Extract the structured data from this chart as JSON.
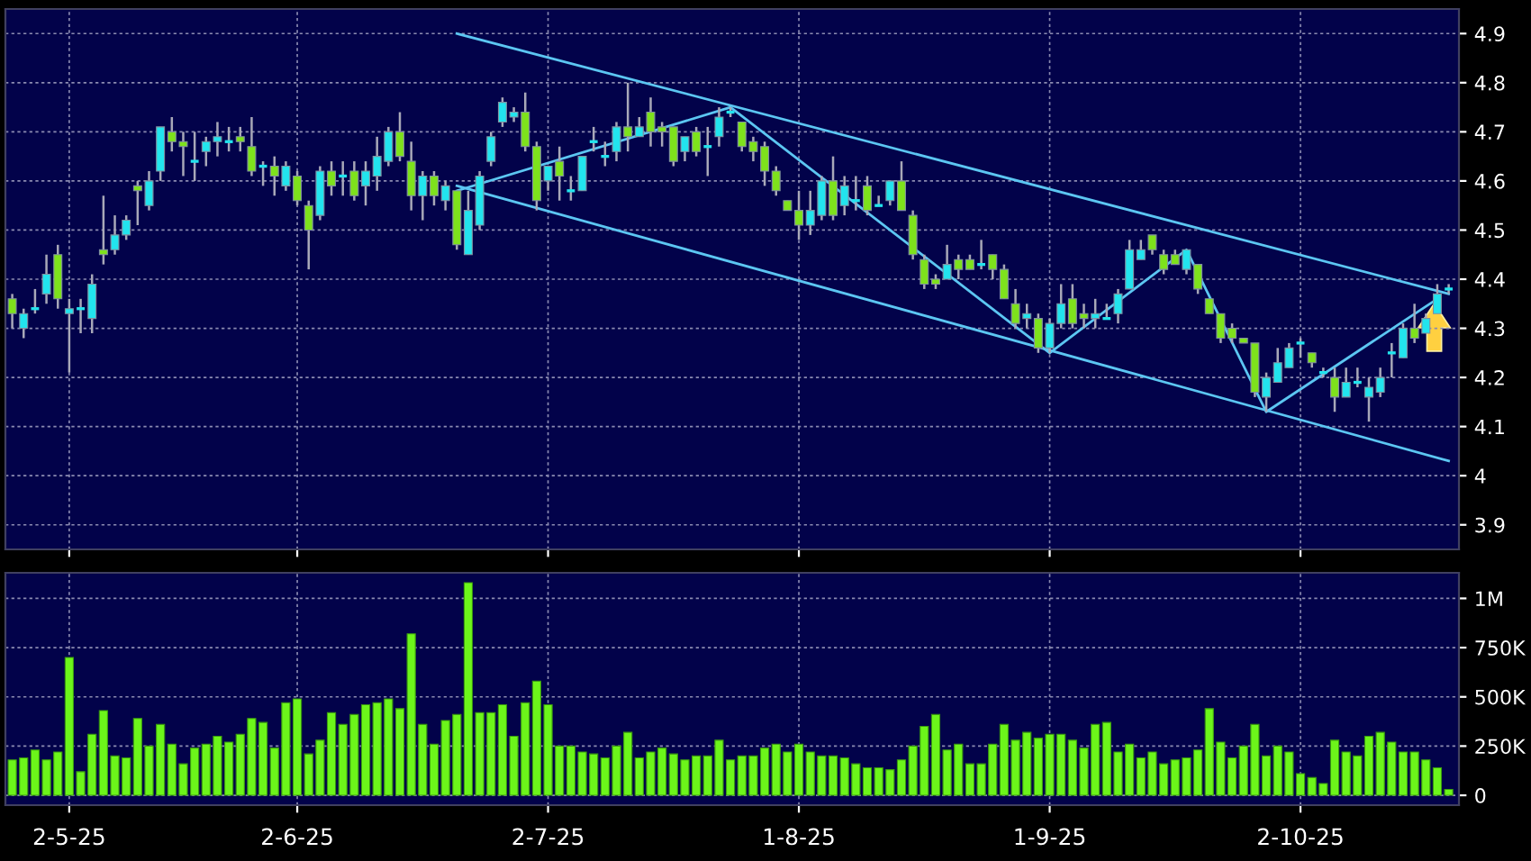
{
  "chart_data": [
    {
      "type": "candlestick",
      "categories": [
        null,
        null,
        null,
        null,
        null,
        null,
        null,
        null,
        null,
        null,
        null,
        null,
        null,
        null,
        null,
        null,
        null,
        null,
        null,
        null,
        null,
        null,
        null,
        null,
        null,
        null,
        null,
        null,
        null,
        null,
        null,
        null,
        null,
        null,
        null,
        null,
        null,
        null,
        null,
        null,
        null,
        null,
        null,
        null,
        null,
        null,
        null,
        null,
        null,
        null,
        null,
        null,
        null,
        null,
        null,
        null,
        null,
        null,
        null,
        null,
        null,
        null,
        null,
        null,
        null,
        null,
        null,
        null,
        null,
        null,
        null,
        null,
        null,
        null,
        null,
        null,
        null,
        null,
        null,
        null,
        null,
        null,
        null,
        null,
        null,
        null,
        null,
        null,
        null,
        null,
        null,
        null,
        null,
        null,
        null,
        null,
        null,
        null,
        null,
        null,
        null,
        null,
        null,
        null,
        null,
        null,
        null,
        null,
        null,
        null,
        null,
        null,
        null,
        null,
        null,
        null,
        null,
        null,
        null,
        null,
        null,
        null,
        null,
        null,
        null,
        null,
        null
      ],
      "tick_labels": "y",
      "ylim": [
        3.85,
        4.95
      ],
      "yticks": [
        3.9,
        4,
        4.1,
        4.2,
        4.3,
        4.4,
        4.5,
        4.6,
        4.7,
        4.8,
        4.9
      ],
      "grid": true,
      "series": [
        {
          "type": "line",
          "color": "#5cc6f2",
          "values": [
            null,
            null,
            null,
            null,
            null,
            null,
            null,
            null,
            null,
            null,
            null,
            null,
            null,
            null,
            null,
            null,
            null,
            null,
            null,
            null,
            null,
            null,
            null,
            null,
            null,
            null,
            null,
            null,
            null,
            null,
            null,
            null,
            null,
            null,
            null,
            null,
            null,
            null,
            null,
            4.9,
            null,
            null,
            null,
            null,
            null,
            null,
            null,
            null,
            null,
            null,
            null,
            null,
            null,
            null,
            null,
            null,
            null,
            null,
            null,
            null,
            null,
            null,
            null,
            null,
            null,
            null,
            null,
            null,
            null,
            null,
            null,
            null,
            null,
            null,
            null,
            null,
            null,
            null,
            null,
            null,
            null,
            null,
            null,
            null,
            null,
            null,
            null,
            null,
            null,
            null,
            null,
            null,
            null,
            null,
            null,
            null,
            null,
            null,
            null,
            null,
            null,
            null,
            null,
            null,
            null,
            null,
            null,
            null,
            null,
            null,
            null,
            null,
            null,
            null,
            null,
            null,
            null,
            null,
            null,
            null,
            null,
            null,
            null,
            null,
            null,
            null,
            4.37
          ]
        },
        {
          "type": "line",
          "color": "#5cc6f2",
          "values": [
            null,
            null,
            null,
            null,
            null,
            null,
            null,
            null,
            null,
            null,
            null,
            null,
            null,
            null,
            null,
            null,
            null,
            null,
            null,
            null,
            null,
            null,
            null,
            null,
            null,
            null,
            null,
            null,
            null,
            null,
            null,
            null,
            null,
            null,
            null,
            null,
            null,
            null,
            null,
            4.59,
            null,
            null,
            null,
            null,
            null,
            null,
            null,
            null,
            null,
            null,
            null,
            null,
            null,
            null,
            null,
            null,
            null,
            null,
            null,
            null,
            null,
            null,
            null,
            null,
            null,
            null,
            null,
            null,
            null,
            null,
            null,
            null,
            null,
            null,
            null,
            null,
            null,
            null,
            null,
            null,
            null,
            null,
            null,
            null,
            null,
            null,
            null,
            null,
            null,
            null,
            null,
            null,
            null,
            null,
            null,
            null,
            null,
            null,
            null,
            null,
            null,
            null,
            null,
            null,
            null,
            null,
            null,
            null,
            null,
            null,
            null,
            null,
            null,
            null,
            null,
            null,
            null,
            null,
            null,
            null,
            null,
            null,
            null,
            null,
            null,
            null,
            4.03
          ]
        },
        {
          "type": "line",
          "color": "#5cc6f2",
          "values": [
            null,
            null,
            null,
            null,
            null,
            null,
            null,
            null,
            null,
            null,
            null,
            null,
            null,
            null,
            null,
            null,
            null,
            null,
            null,
            null,
            null,
            null,
            null,
            null,
            null,
            null,
            null,
            null,
            null,
            null,
            null,
            null,
            null,
            null,
            null,
            null,
            null,
            null,
            null,
            4.58,
            null,
            null,
            null,
            null,
            null,
            null,
            null,
            null,
            null,
            null,
            null,
            null,
            null,
            null,
            null,
            null,
            null,
            null,
            null,
            null,
            null,
            null,
            null,
            4.75,
            null,
            null,
            null,
            null,
            null,
            null,
            null,
            null,
            null,
            null,
            null,
            null,
            null,
            null,
            null,
            null,
            null,
            null,
            null,
            null,
            null,
            null,
            null,
            null,
            null,
            null,
            null,
            4.25,
            null,
            null,
            null,
            null,
            null,
            null,
            null,
            null,
            null,
            null,
            null,
            4.46,
            null,
            null,
            null,
            null,
            null,
            null,
            4.13,
            null,
            null,
            null,
            null,
            null,
            null,
            null,
            null,
            null,
            null,
            null,
            null,
            null,
            null,
            4.36,
            null
          ]
        },
        {
          "type": "candlestick",
          "colors": [
            "#7ee21c",
            "#22e4ee",
            "#22e4ee",
            "#22e4ee",
            "#7ee21c",
            "#22e4ee",
            "#22e4ee",
            "#22e4ee",
            "#7ee21c",
            "#22e4ee",
            "#22e4ee",
            "#7ee21c",
            "#22e4ee",
            "#22e4ee",
            "#7ee21c",
            "#7ee21c",
            "#22e4ee",
            "#22e4ee",
            "#22e4ee",
            "#22e4ee",
            "#7ee21c",
            "#7ee21c",
            "#22e4ee",
            "#7ee21c",
            "#22e4ee",
            "#7ee21c",
            "#7ee21c",
            "#22e4ee",
            "#7ee21c",
            "#22e4ee",
            "#7ee21c",
            "#22e4ee",
            "#22e4ee",
            "#22e4ee",
            "#7ee21c",
            "#7ee21c",
            "#22e4ee",
            "#7ee21c",
            "#22e4ee",
            "#7ee21c",
            "#22e4ee",
            "#22e4ee",
            "#22e4ee",
            "#22e4ee",
            "#22e4ee",
            "#7ee21c",
            "#7ee21c",
            "#22e4ee",
            "#7ee21c",
            "#22e4ee",
            "#22e4ee",
            "#22e4ee",
            "#22e4ee",
            "#22e4ee",
            "#7ee21c",
            "#22e4ee",
            "#7ee21c",
            "#7ee21c",
            "#7ee21c",
            "#22e4ee",
            "#7ee21c",
            "#22e4ee",
            "#22e4ee",
            "#22e4ee",
            "#7ee21c",
            "#7ee21c",
            "#7ee21c",
            "#7ee21c",
            "#7ee21c",
            "#7ee21c",
            "#22e4ee",
            "#22e4ee",
            "#7ee21c",
            "#22e4ee",
            "#22e4ee",
            "#7ee21c",
            "#22e4ee",
            "#22e4ee",
            "#7ee21c",
            "#7ee21c",
            "#7ee21c",
            "#7ee21c",
            "#22e4ee",
            "#7ee21c",
            "#7ee21c",
            "#22e4ee",
            "#7ee21c",
            "#7ee21c",
            "#7ee21c",
            "#22e4ee",
            "#7ee21c",
            "#22e4ee",
            "#22e4ee",
            "#7ee21c",
            "#7ee21c",
            "#22e4ee",
            "#22e4ee",
            "#22e4ee",
            "#22e4ee",
            "#22e4ee",
            "#7ee21c",
            "#7ee21c",
            "#7ee21c",
            "#22e4ee",
            "#7ee21c",
            "#7ee21c",
            "#7ee21c",
            "#7ee21c",
            "#7ee21c",
            "#7ee21c",
            "#22e4ee",
            "#22e4ee",
            "#22e4ee",
            "#22e4ee",
            "#7ee21c",
            "#22e4ee",
            "#7ee21c",
            "#22e4ee",
            "#22e4ee",
            "#22e4ee",
            "#22e4ee",
            "#22e4ee",
            "#22e4ee",
            "#7ee21c",
            "#22e4ee",
            "#22e4ee",
            "#22e4ee"
          ],
          "ohlc": [
            [
              4.36,
              4.37,
              4.3,
              4.33
            ],
            [
              4.3,
              4.34,
              4.28,
              4.33
            ],
            [
              4.34,
              4.38,
              4.33,
              4.34
            ],
            [
              4.37,
              4.45,
              4.35,
              4.41
            ],
            [
              4.45,
              4.47,
              4.34,
              4.36
            ],
            [
              4.33,
              4.36,
              4.21,
              4.34
            ],
            [
              4.34,
              4.36,
              4.29,
              4.34
            ],
            [
              4.32,
              4.41,
              4.29,
              4.39
            ],
            [
              4.46,
              4.57,
              4.43,
              4.45
            ],
            [
              4.46,
              4.53,
              4.45,
              4.49
            ],
            [
              4.49,
              4.53,
              4.48,
              4.52
            ],
            [
              4.59,
              4.6,
              4.51,
              4.58
            ],
            [
              4.55,
              4.62,
              4.54,
              4.6
            ],
            [
              4.62,
              4.71,
              4.6,
              4.71
            ],
            [
              4.7,
              4.73,
              4.66,
              4.68
            ],
            [
              4.68,
              4.7,
              4.61,
              4.67
            ],
            [
              4.64,
              4.7,
              4.6,
              4.64
            ],
            [
              4.66,
              4.69,
              4.63,
              4.68
            ],
            [
              4.68,
              4.72,
              4.65,
              4.69
            ],
            [
              4.68,
              4.71,
              4.66,
              4.68
            ],
            [
              4.69,
              4.71,
              4.66,
              4.68
            ],
            [
              4.67,
              4.73,
              4.61,
              4.62
            ],
            [
              4.63,
              4.64,
              4.59,
              4.63
            ],
            [
              4.63,
              4.65,
              4.57,
              4.61
            ],
            [
              4.59,
              4.64,
              4.58,
              4.63
            ],
            [
              4.61,
              4.62,
              4.55,
              4.56
            ],
            [
              4.55,
              4.56,
              4.42,
              4.5
            ],
            [
              4.53,
              4.63,
              4.52,
              4.62
            ],
            [
              4.62,
              4.64,
              4.57,
              4.59
            ],
            [
              4.61,
              4.64,
              4.57,
              4.61
            ],
            [
              4.62,
              4.64,
              4.56,
              4.57
            ],
            [
              4.59,
              4.64,
              4.55,
              4.62
            ],
            [
              4.61,
              4.69,
              4.58,
              4.65
            ],
            [
              4.64,
              4.71,
              4.63,
              4.7
            ],
            [
              4.7,
              4.74,
              4.64,
              4.65
            ],
            [
              4.64,
              4.68,
              4.54,
              4.57
            ],
            [
              4.57,
              4.62,
              4.52,
              4.61
            ],
            [
              4.61,
              4.62,
              4.55,
              4.57
            ],
            [
              4.56,
              4.6,
              4.54,
              4.59
            ],
            [
              4.58,
              4.58,
              4.46,
              4.47
            ],
            [
              4.45,
              4.58,
              4.45,
              4.54
            ],
            [
              4.51,
              4.62,
              4.5,
              4.61
            ],
            [
              4.64,
              4.7,
              4.63,
              4.69
            ],
            [
              4.72,
              4.77,
              4.71,
              4.76
            ],
            [
              4.73,
              4.75,
              4.72,
              4.74
            ],
            [
              4.74,
              4.78,
              4.66,
              4.67
            ],
            [
              4.67,
              4.68,
              4.54,
              4.56
            ],
            [
              4.6,
              4.63,
              4.58,
              4.63
            ],
            [
              4.64,
              4.67,
              4.56,
              4.61
            ],
            [
              4.58,
              4.61,
              4.56,
              4.58
            ],
            [
              4.58,
              4.65,
              4.58,
              4.65
            ],
            [
              4.68,
              4.71,
              4.66,
              4.68
            ],
            [
              4.65,
              4.68,
              4.63,
              4.65
            ],
            [
              4.66,
              4.72,
              4.64,
              4.71
            ],
            [
              4.71,
              4.8,
              4.66,
              4.69
            ],
            [
              4.69,
              4.73,
              4.69,
              4.71
            ],
            [
              4.74,
              4.77,
              4.67,
              4.7
            ],
            [
              4.71,
              4.72,
              4.67,
              4.7
            ],
            [
              4.71,
              4.71,
              4.63,
              4.64
            ],
            [
              4.66,
              4.69,
              4.64,
              4.69
            ],
            [
              4.7,
              4.71,
              4.65,
              4.66
            ],
            [
              4.67,
              4.71,
              4.61,
              4.67
            ],
            [
              4.69,
              4.75,
              4.67,
              4.73
            ],
            [
              4.74,
              4.75,
              4.73,
              4.74
            ],
            [
              4.72,
              4.72,
              4.66,
              4.67
            ],
            [
              4.68,
              4.69,
              4.64,
              4.66
            ],
            [
              4.67,
              4.68,
              4.59,
              4.62
            ],
            [
              4.62,
              4.63,
              4.57,
              4.58
            ],
            [
              4.56,
              4.56,
              4.54,
              4.54
            ],
            [
              4.54,
              4.58,
              4.48,
              4.51
            ],
            [
              4.51,
              4.58,
              4.49,
              4.54
            ],
            [
              4.53,
              4.61,
              4.52,
              4.6
            ],
            [
              4.6,
              4.65,
              4.52,
              4.53
            ],
            [
              4.55,
              4.61,
              4.53,
              4.59
            ],
            [
              4.56,
              4.61,
              4.54,
              4.56
            ],
            [
              4.59,
              4.61,
              4.53,
              4.54
            ],
            [
              4.55,
              4.57,
              4.55,
              4.55
            ],
            [
              4.56,
              4.6,
              4.55,
              4.6
            ],
            [
              4.6,
              4.64,
              4.54,
              4.54
            ],
            [
              4.53,
              4.54,
              4.44,
              4.45
            ],
            [
              4.44,
              4.45,
              4.38,
              4.39
            ],
            [
              4.4,
              4.41,
              4.38,
              4.39
            ],
            [
              4.4,
              4.47,
              4.4,
              4.43
            ],
            [
              4.44,
              4.45,
              4.4,
              4.42
            ],
            [
              4.44,
              4.45,
              4.42,
              4.42
            ],
            [
              4.43,
              4.48,
              4.42,
              4.43
            ],
            [
              4.45,
              4.45,
              4.4,
              4.42
            ],
            [
              4.42,
              4.43,
              4.36,
              4.36
            ],
            [
              4.35,
              4.38,
              4.3,
              4.31
            ],
            [
              4.32,
              4.35,
              4.3,
              4.33
            ],
            [
              4.32,
              4.33,
              4.25,
              4.26
            ],
            [
              4.26,
              4.32,
              4.25,
              4.31
            ],
            [
              4.31,
              4.39,
              4.3,
              4.35
            ],
            [
              4.36,
              4.39,
              4.3,
              4.31
            ],
            [
              4.33,
              4.35,
              4.3,
              4.32
            ],
            [
              4.32,
              4.36,
              4.3,
              4.33
            ],
            [
              4.32,
              4.35,
              4.32,
              4.32
            ],
            [
              4.33,
              4.38,
              4.31,
              4.37
            ],
            [
              4.38,
              4.48,
              4.38,
              4.46
            ],
            [
              4.44,
              4.48,
              4.44,
              4.46
            ],
            [
              4.49,
              4.49,
              4.45,
              4.46
            ],
            [
              4.45,
              4.46,
              4.41,
              4.42
            ],
            [
              4.45,
              4.46,
              4.43,
              4.43
            ],
            [
              4.42,
              4.46,
              4.41,
              4.46
            ],
            [
              4.43,
              4.43,
              4.37,
              4.38
            ],
            [
              4.36,
              4.36,
              4.33,
              4.33
            ],
            [
              4.33,
              4.33,
              4.27,
              4.28
            ],
            [
              4.3,
              4.31,
              4.27,
              4.28
            ],
            [
              4.28,
              4.28,
              4.27,
              4.27
            ],
            [
              4.27,
              4.27,
              4.16,
              4.17
            ],
            [
              4.16,
              4.21,
              4.13,
              4.2
            ],
            [
              4.19,
              4.26,
              4.19,
              4.23
            ],
            [
              4.22,
              4.27,
              4.22,
              4.26
            ],
            [
              4.27,
              4.28,
              4.24,
              4.27
            ],
            [
              4.25,
              4.25,
              4.22,
              4.23
            ],
            [
              4.21,
              4.22,
              4.2,
              4.21
            ],
            [
              4.2,
              4.22,
              4.13,
              4.16
            ],
            [
              4.16,
              4.22,
              4.16,
              4.19
            ],
            [
              4.19,
              4.22,
              4.18,
              4.19
            ],
            [
              4.16,
              4.2,
              4.11,
              4.18
            ],
            [
              4.17,
              4.22,
              4.16,
              4.2
            ],
            [
              4.25,
              4.27,
              4.2,
              4.25
            ],
            [
              4.24,
              4.31,
              4.24,
              4.3
            ],
            [
              4.3,
              4.35,
              4.27,
              4.28
            ],
            [
              4.29,
              4.33,
              4.29,
              4.32
            ],
            [
              4.33,
              4.39,
              4.33,
              4.37
            ],
            [
              4.38,
              4.39,
              4.37,
              4.38
            ]
          ]
        }
      ]
    },
    {
      "type": "bar",
      "categories": [
        null,
        null,
        null,
        null,
        null,
        "2-5-25",
        null,
        null,
        null,
        null,
        null,
        null,
        null,
        null,
        null,
        null,
        null,
        null,
        null,
        null,
        null,
        null,
        null,
        null,
        null,
        "2-6-25",
        null,
        null,
        null,
        null,
        null,
        null,
        null,
        null,
        null,
        null,
        null,
        null,
        null,
        null,
        null,
        null,
        null,
        null,
        null,
        null,
        null,
        "2-7-25",
        null,
        null,
        null,
        null,
        null,
        null,
        null,
        null,
        null,
        null,
        null,
        null,
        null,
        null,
        null,
        null,
        null,
        null,
        null,
        null,
        null,
        "1-8-25",
        null,
        null,
        null,
        null,
        null,
        null,
        null,
        null,
        null,
        null,
        null,
        null,
        null,
        null,
        null,
        null,
        null,
        null,
        null,
        null,
        null,
        "1-9-25",
        null,
        null,
        null,
        null,
        null,
        null,
        null,
        null,
        null,
        null,
        null,
        null,
        null,
        null,
        null,
        null,
        null,
        null,
        null,
        null,
        null,
        "2-10-25",
        null,
        null,
        null,
        null,
        null,
        null,
        null,
        null,
        null,
        null,
        null,
        null,
        null
      ],
      "color": "#6cf51a",
      "ylim": [
        -50000,
        1130000
      ],
      "yticks": [
        0,
        {
          "value": 250000,
          "label": "250K"
        },
        {
          "value": 500000,
          "label": "500K"
        },
        {
          "value": 750000,
          "label": "750K"
        },
        {
          "value": 1000000,
          "label": "1M"
        }
      ],
      "grid": true,
      "values": [
        180000,
        190000,
        230000,
        180000,
        220000,
        700000,
        120000,
        310000,
        430000,
        200000,
        190000,
        390000,
        250000,
        360000,
        260000,
        160000,
        240000,
        260000,
        300000,
        270000,
        310000,
        390000,
        370000,
        240000,
        470000,
        490000,
        210000,
        280000,
        420000,
        360000,
        410000,
        460000,
        470000,
        490000,
        440000,
        820000,
        360000,
        260000,
        380000,
        410000,
        1080000,
        420000,
        420000,
        460000,
        300000,
        470000,
        580000,
        460000,
        250000,
        250000,
        220000,
        210000,
        190000,
        250000,
        320000,
        190000,
        220000,
        240000,
        210000,
        180000,
        200000,
        200000,
        280000,
        180000,
        200000,
        200000,
        240000,
        260000,
        220000,
        260000,
        220000,
        200000,
        200000,
        190000,
        160000,
        140000,
        140000,
        130000,
        180000,
        250000,
        350000,
        410000,
        230000,
        260000,
        160000,
        160000,
        260000,
        360000,
        280000,
        320000,
        290000,
        310000,
        310000,
        280000,
        240000,
        360000,
        370000,
        220000,
        260000,
        190000,
        220000,
        160000,
        180000,
        190000,
        230000,
        440000,
        270000,
        190000,
        250000,
        360000,
        200000,
        250000,
        220000,
        110000,
        90000,
        60000,
        280000,
        220000,
        200000,
        300000,
        320000,
        270000,
        220000,
        220000,
        180000,
        140000,
        30000
      ]
    }
  ]
}
